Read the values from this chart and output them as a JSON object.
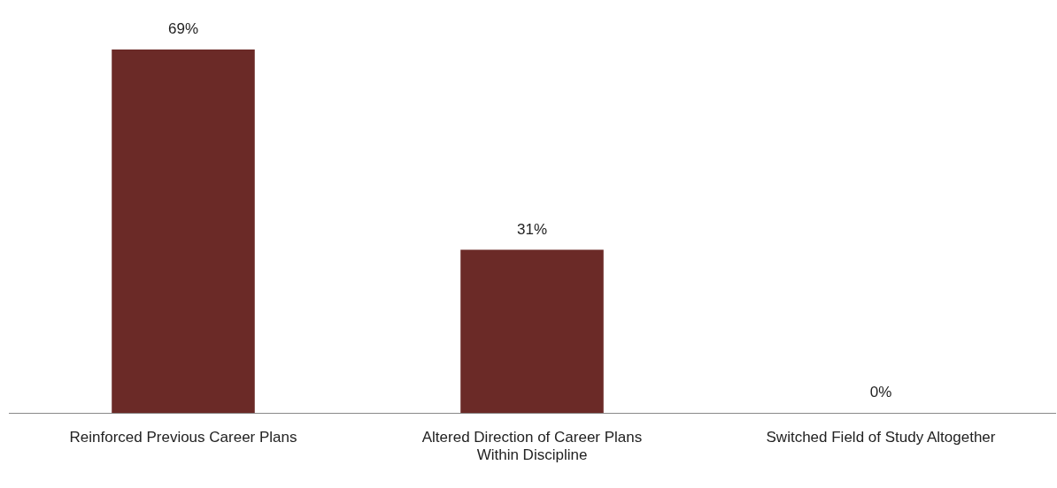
{
  "chart_data": {
    "type": "bar",
    "categories": [
      "Reinforced Previous Career Plans",
      "Altered Direction of Career Plans Within Discipline",
      "Switched Field of Study Altogether"
    ],
    "values": [
      69,
      31,
      0
    ],
    "value_labels": [
      "69%",
      "31%",
      "0%"
    ],
    "color": "#6b2a27",
    "grid": false,
    "legend": false
  }
}
